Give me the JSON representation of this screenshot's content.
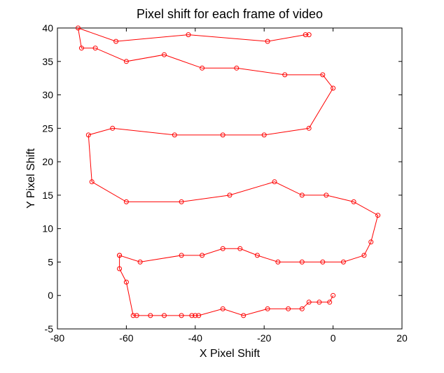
{
  "chart_data": {
    "type": "line",
    "title": "Pixel shift for each frame of video",
    "xlabel": "X Pixel Shift",
    "ylabel": "Y Pixel Shift",
    "xlim": [
      -80,
      20
    ],
    "ylim": [
      -5,
      40
    ],
    "xticks": [
      -80,
      -60,
      -40,
      -20,
      0,
      20
    ],
    "yticks": [
      -5,
      0,
      5,
      10,
      15,
      20,
      25,
      30,
      35,
      40
    ],
    "xtick_labels": [
      "-80",
      "-60",
      "-40",
      "-20",
      "0",
      "20"
    ],
    "ytick_labels": [
      "-5",
      "0",
      "5",
      "10",
      "15",
      "20",
      "25",
      "30",
      "35",
      "40"
    ],
    "grid": false,
    "legend": "none",
    "marker": "circle",
    "series": [
      {
        "color": "#ff0000",
        "x": [
          0,
          -1,
          -4,
          -7,
          -9,
          -13,
          -19,
          -26,
          -32,
          -39,
          -40,
          -41,
          -44,
          -49,
          -53,
          -57,
          -58,
          -60,
          -62,
          -62,
          -62,
          -56,
          -44,
          -38,
          -32,
          -27,
          -22,
          -16,
          -9,
          -3,
          3,
          9,
          11,
          13,
          6,
          -2,
          -9,
          -17,
          -30,
          -44,
          -60,
          -70,
          -71,
          -64,
          -46,
          -32,
          -20,
          -7,
          0,
          -3,
          -14,
          -28,
          -38,
          -49,
          -60,
          -69,
          -73,
          -74,
          -63,
          -42,
          -19,
          -8,
          -7
        ],
        "y": [
          0,
          -1,
          -1,
          -1,
          -2,
          -2,
          -2,
          -3,
          -2,
          -3,
          -3,
          -3,
          -3,
          -3,
          -3,
          -3,
          -3,
          2,
          4,
          6,
          6,
          5,
          6,
          6,
          7,
          7,
          6,
          5,
          5,
          5,
          5,
          6,
          8,
          12,
          14,
          15,
          15,
          17,
          15,
          14,
          14,
          17,
          24,
          25,
          24,
          24,
          24,
          25,
          31,
          33,
          33,
          34,
          34,
          36,
          35,
          37,
          37,
          40,
          38,
          39,
          38,
          39,
          39
        ]
      }
    ]
  }
}
